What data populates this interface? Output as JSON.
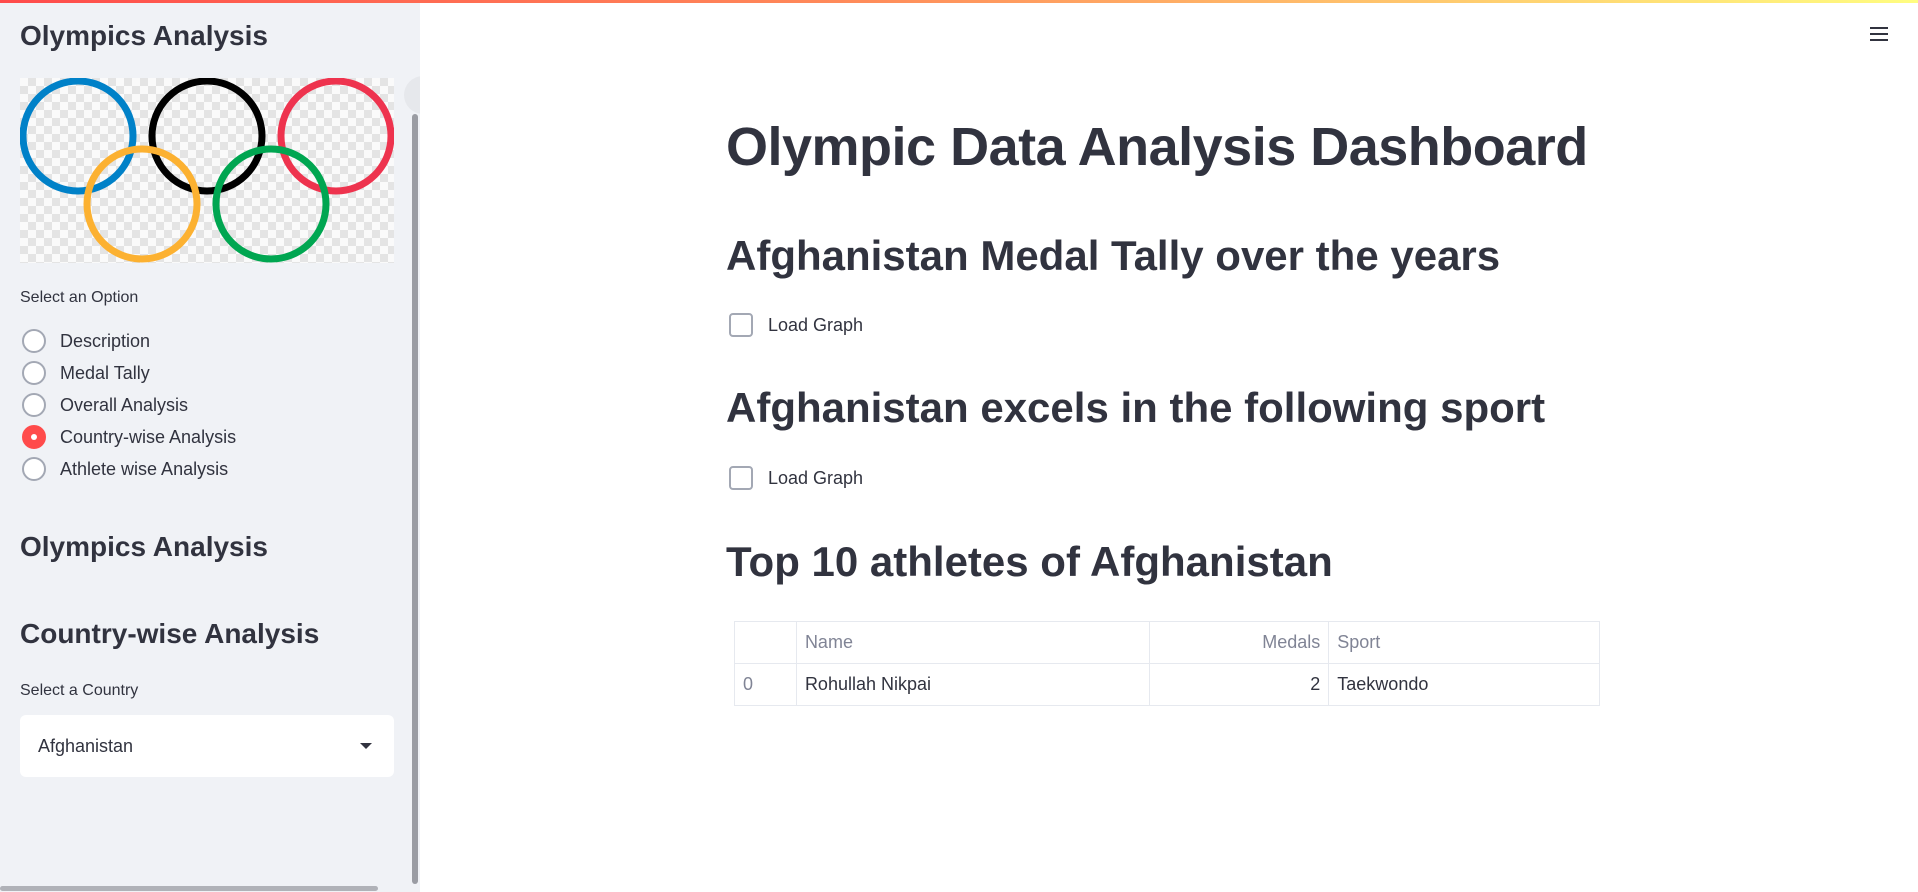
{
  "sidebar": {
    "title_top": "Olympics Analysis",
    "option_label": "Select an Option",
    "options": [
      {
        "label": "Description",
        "selected": false
      },
      {
        "label": "Medal Tally",
        "selected": false
      },
      {
        "label": "Overall Analysis",
        "selected": false
      },
      {
        "label": "Country-wise Analysis",
        "selected": true
      },
      {
        "label": "Athlete wise Analysis",
        "selected": false
      }
    ],
    "section_title": "Olympics Analysis",
    "subsection_title": "Country-wise Analysis",
    "country_label": "Select a Country",
    "country_value": "Afghanistan"
  },
  "main": {
    "title": "Olympic Data Analysis Dashboard",
    "medal_tally_heading": "Afghanistan Medal Tally over the years",
    "load_graph_1": "Load Graph",
    "sport_heading": "Afghanistan excels in the following sport",
    "load_graph_2": "Load Graph",
    "athletes_heading": "Top 10 athletes of Afghanistan",
    "table": {
      "headers": [
        "",
        "Name",
        "Medals",
        "Sport"
      ],
      "rows": [
        {
          "index": "0",
          "name": "Rohullah Nikpai",
          "medals": "2",
          "sport": "Taekwondo"
        }
      ]
    }
  },
  "colors": {
    "accent": "#ff4b4b",
    "sidebar_bg": "#f0f2f6",
    "text": "#31333f",
    "ring_blue": "#0081c8",
    "ring_black": "#000000",
    "ring_red": "#ee334e",
    "ring_yellow": "#fcb131",
    "ring_green": "#00a651"
  },
  "icons": {
    "menu": "hamburger-menu-icon",
    "select_caret": "caret-down-icon",
    "logo": "olympic-rings-logo"
  }
}
